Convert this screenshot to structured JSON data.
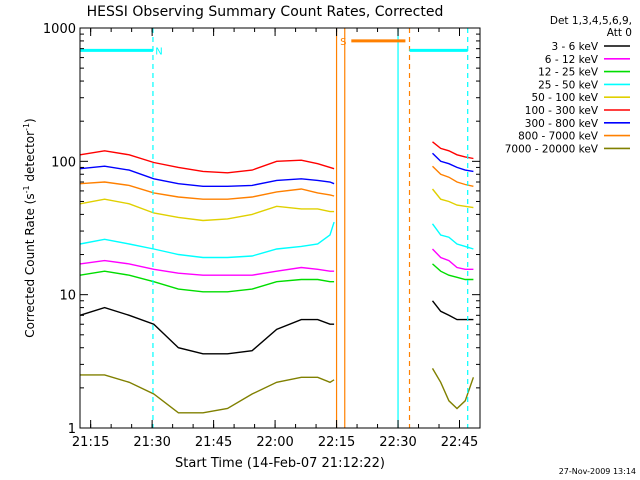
{
  "chart_data": {
    "type": "line",
    "title": "HESSI Observing Summary Count Rates, Corrected",
    "xlabel": "Start Time (14-Feb-07 21:12:22)",
    "ylabel_main": "Corrected Count Rate (s",
    "ylabel_sup1": "-1",
    "ylabel_mid": " detector",
    "ylabel_sup2": "-1",
    "ylabel_end": ")",
    "y_scale": "log",
    "ylim": [
      1,
      1000
    ],
    "xlim": [
      "21:12:22",
      "22:50:00"
    ],
    "x_tick_labels": [
      "21:15",
      "21:30",
      "21:45",
      "22:00",
      "22:15",
      "22:30",
      "22:45"
    ],
    "x_ticks_min": [
      2.6,
      17.6,
      32.6,
      47.6,
      62.6,
      77.6,
      92.6
    ],
    "x_range_min": [
      0,
      97.6
    ],
    "y_tick_labels": [
      "1",
      "10",
      "100",
      "1000"
    ],
    "y_tick_values": [
      1,
      10,
      100,
      1000
    ],
    "legend_header": [
      "Det 1,3,4,5,6,9,",
      "Att 0"
    ],
    "legend_placement": "right",
    "series": [
      {
        "name": "3 - 6 keV",
        "color": "#000000",
        "x": [
          0,
          6,
          12,
          18,
          24,
          30,
          36,
          42,
          48,
          54,
          58,
          61,
          62
        ],
        "values": [
          7,
          8,
          7,
          6,
          4,
          3.6,
          3.6,
          3.8,
          5.5,
          6.5,
          6.5,
          6,
          6
        ]
      },
      {
        "name": "6 - 12 keV",
        "color": "#ff00ff",
        "x": [
          0,
          6,
          12,
          18,
          24,
          30,
          36,
          42,
          48,
          54,
          58,
          61,
          62
        ],
        "values": [
          17,
          18,
          17,
          15.5,
          14.5,
          14,
          14,
          14,
          15,
          16,
          15.5,
          15,
          15
        ]
      },
      {
        "name": "12 - 25 keV",
        "color": "#00dd00",
        "x": [
          0,
          6,
          12,
          18,
          24,
          30,
          36,
          42,
          48,
          54,
          58,
          61,
          62
        ],
        "values": [
          14,
          15,
          14,
          12.5,
          11,
          10.5,
          10.5,
          11,
          12.5,
          13,
          13,
          12.5,
          12.5
        ]
      },
      {
        "name": "25 - 50 keV",
        "color": "#00ffff",
        "x": [
          0,
          6,
          12,
          18,
          24,
          30,
          36,
          42,
          48,
          54,
          58,
          61,
          62
        ],
        "values": [
          24,
          26,
          24,
          22,
          20,
          19,
          19,
          19.5,
          22,
          23,
          24,
          28,
          35
        ]
      },
      {
        "name": "50 - 100 keV",
        "color": "#e0d000",
        "x": [
          0,
          6,
          12,
          18,
          24,
          30,
          36,
          42,
          48,
          54,
          58,
          61,
          62
        ],
        "values": [
          48,
          52,
          48,
          41,
          38,
          36,
          37,
          40,
          46,
          44,
          44,
          42,
          42
        ]
      },
      {
        "name": "100 - 300 keV",
        "color": "#ff0000",
        "x": [
          0,
          6,
          12,
          18,
          24,
          30,
          36,
          42,
          48,
          54,
          58,
          61,
          62
        ],
        "values": [
          112,
          120,
          112,
          98,
          90,
          84,
          82,
          86,
          100,
          102,
          96,
          90,
          88
        ]
      },
      {
        "name": "300 - 800 keV",
        "color": "#0000ff",
        "x": [
          0,
          6,
          12,
          18,
          24,
          30,
          36,
          42,
          48,
          54,
          58,
          61,
          62
        ],
        "values": [
          88,
          92,
          86,
          74,
          68,
          65,
          65,
          66,
          72,
          74,
          72,
          70,
          68
        ]
      },
      {
        "name": "800 - 7000 keV",
        "color": "#ff8000",
        "x": [
          0,
          6,
          12,
          18,
          24,
          30,
          36,
          42,
          48,
          54,
          58,
          61,
          62
        ],
        "values": [
          68,
          70,
          66,
          58,
          54,
          52,
          52,
          54,
          59,
          62,
          58,
          56,
          55
        ]
      },
      {
        "name": "7000 - 20000 keV",
        "color": "#808000",
        "x": [
          0,
          6,
          12,
          18,
          24,
          30,
          36,
          42,
          48,
          54,
          58,
          61,
          62
        ],
        "values": [
          2.5,
          2.5,
          2.2,
          1.8,
          1.3,
          1.3,
          1.4,
          1.8,
          2.2,
          2.4,
          2.4,
          2.2,
          2.3
        ]
      }
    ],
    "series_after": {
      "x": [
        86,
        88,
        90,
        92,
        94,
        96
      ],
      "values": {
        "3 - 6 keV": [
          9,
          7.5,
          7,
          6.5,
          6.5,
          6.5
        ],
        "6 - 12 keV": [
          22,
          19,
          18,
          16,
          15.5,
          15.5
        ],
        "12 - 25 keV": [
          17,
          15,
          14,
          13.5,
          13,
          13
        ],
        "25 - 50 keV": [
          34,
          28,
          27,
          24,
          23,
          22
        ],
        "50 - 100 keV": [
          62,
          52,
          50,
          47,
          46,
          45
        ],
        "100 - 300 keV": [
          140,
          125,
          120,
          112,
          108,
          105
        ],
        "300 - 800 keV": [
          115,
          100,
          96,
          90,
          86,
          84
        ],
        "800 - 7000 keV": [
          92,
          80,
          76,
          70,
          67,
          65
        ],
        "7000 - 20000 keV": [
          2.8,
          2.2,
          1.6,
          1.4,
          1.6,
          2.4
        ]
      }
    },
    "bands": [
      {
        "label": "N",
        "color": "#00ffff",
        "x_start": 0,
        "x_end": 17.8,
        "level": 680
      },
      {
        "label": "S",
        "color": "#ff8000",
        "x_start": 66.2,
        "x_end": 79.4,
        "level": 800
      }
    ],
    "band_extra": [
      {
        "color": "#00ffff",
        "x_start": 80.4,
        "x_end": 94.6,
        "level": 680
      }
    ],
    "vlines": [
      {
        "x": 17.8,
        "color": "#00ffff",
        "style": "dashed"
      },
      {
        "x": 62.6,
        "color": "#ff8000",
        "style": "solid"
      },
      {
        "x": 64.6,
        "color": "#ff8000",
        "style": "solid"
      },
      {
        "x": 77.6,
        "color": "#00ffff",
        "style": "solid"
      },
      {
        "x": 80.4,
        "color": "#ff8000",
        "style": "dashed"
      },
      {
        "x": 94.6,
        "color": "#00ffff",
        "style": "dashed"
      }
    ],
    "grid": false
  },
  "footer": {
    "date_stamp": "27-Nov-2009 13:14"
  }
}
